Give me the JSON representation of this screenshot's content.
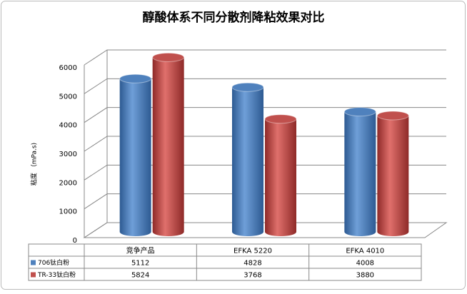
{
  "chart_data": {
    "type": "bar",
    "title": "醇酸体系不同分散剂降粘效果对比",
    "y_label": "粘度 （mPa.s)",
    "categories": [
      "竞争产品",
      "EFKA 5220",
      "EFKA 4010"
    ],
    "series": [
      {
        "name": "706钛白粉",
        "color": "#4f81bd",
        "values": [
          5112,
          4828,
          4008
        ]
      },
      {
        "name": "TR-33钛白粉",
        "color": "#c0504d",
        "values": [
          5824,
          3768,
          3880
        ]
      }
    ],
    "ylim": [
      0,
      6000
    ],
    "yticks": [
      0,
      1000,
      2000,
      3000,
      4000,
      5000,
      6000
    ],
    "grid": true
  }
}
